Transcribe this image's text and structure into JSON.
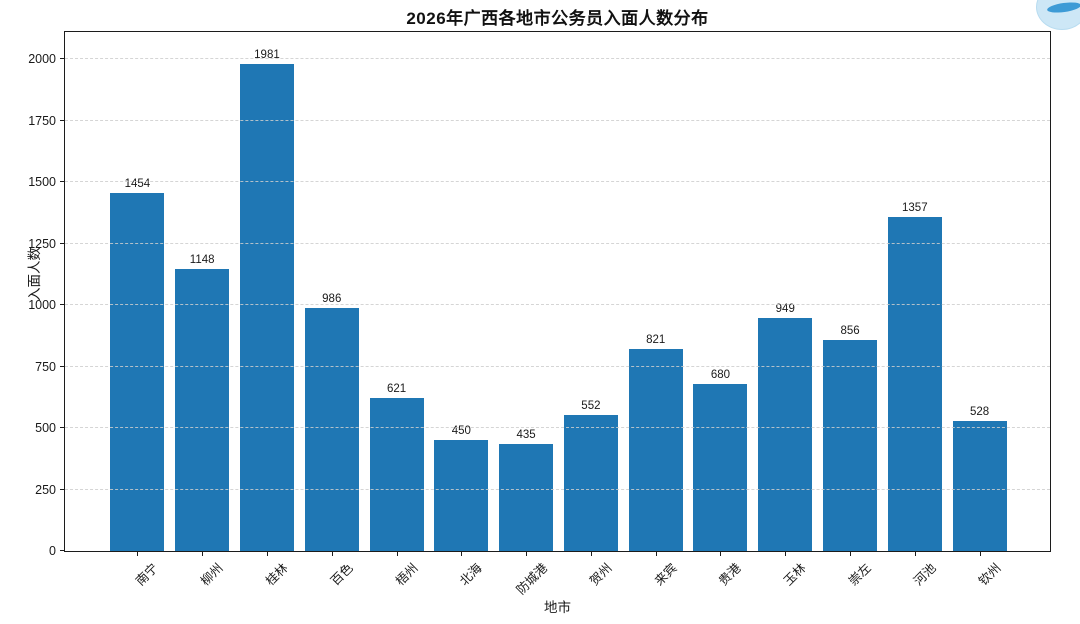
{
  "title": "2026年广西各地市公务员入面人数分布",
  "chart_data": {
    "type": "bar",
    "title": "2026年广西各地市公务员入面人数分布",
    "categories": [
      "南宁",
      "柳州",
      "桂林",
      "百色",
      "梧州",
      "北海",
      "防城港",
      "贺州",
      "来宾",
      "贵港",
      "玉林",
      "崇左",
      "河池",
      "钦州"
    ],
    "values": [
      1454,
      1148,
      1981,
      986,
      621,
      450,
      435,
      552,
      821,
      680,
      949,
      856,
      1357,
      528
    ],
    "xlabel": "地市",
    "ylabel": "入面人数",
    "ylim": [
      0,
      2110
    ],
    "yticks": [
      0,
      250,
      500,
      750,
      1000,
      1250,
      1500,
      1750,
      2000
    ],
    "legend": "none",
    "grid": "horizontal-dashed",
    "value_labels": "on",
    "bar_color": "#1f77b4",
    "grid_color": "#cecece",
    "spine_color": "#1c1c1c",
    "x_tick_rotation_deg": 45
  },
  "decor": {
    "corner_logo": "light-blue-circle-badge",
    "badge_bg": "#cde7f6",
    "badge_accent": "#3d9bd6"
  }
}
